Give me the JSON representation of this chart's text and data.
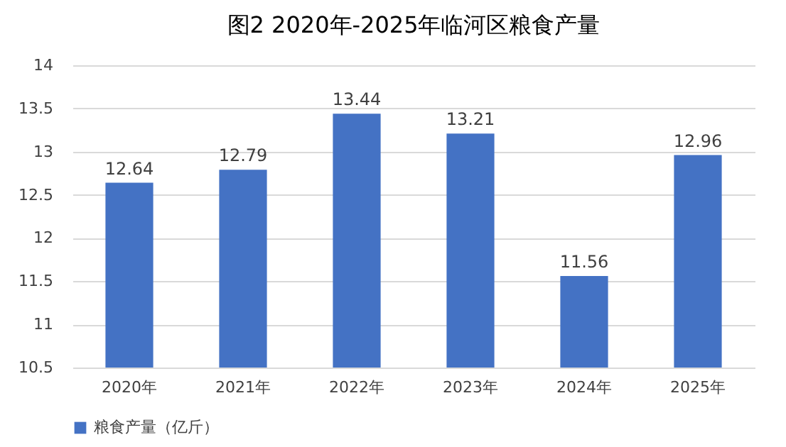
{
  "chart_data": {
    "type": "bar",
    "title": "图2 2020年-2025年临河区粮食产量",
    "categories": [
      "2020年",
      "2021年",
      "2022年",
      "2023年",
      "2024年",
      "2025年"
    ],
    "series": [
      {
        "name": "粮食产量（亿斤）",
        "color": "#4472c4",
        "values": [
          12.64,
          12.79,
          13.44,
          13.21,
          11.56,
          12.96
        ]
      }
    ],
    "ylim": [
      10.5,
      14
    ],
    "yticks": [
      10.5,
      11,
      11.5,
      12,
      12.5,
      13,
      13.5,
      14
    ],
    "grid": "y",
    "legend": "bottom",
    "data_labels": true
  }
}
